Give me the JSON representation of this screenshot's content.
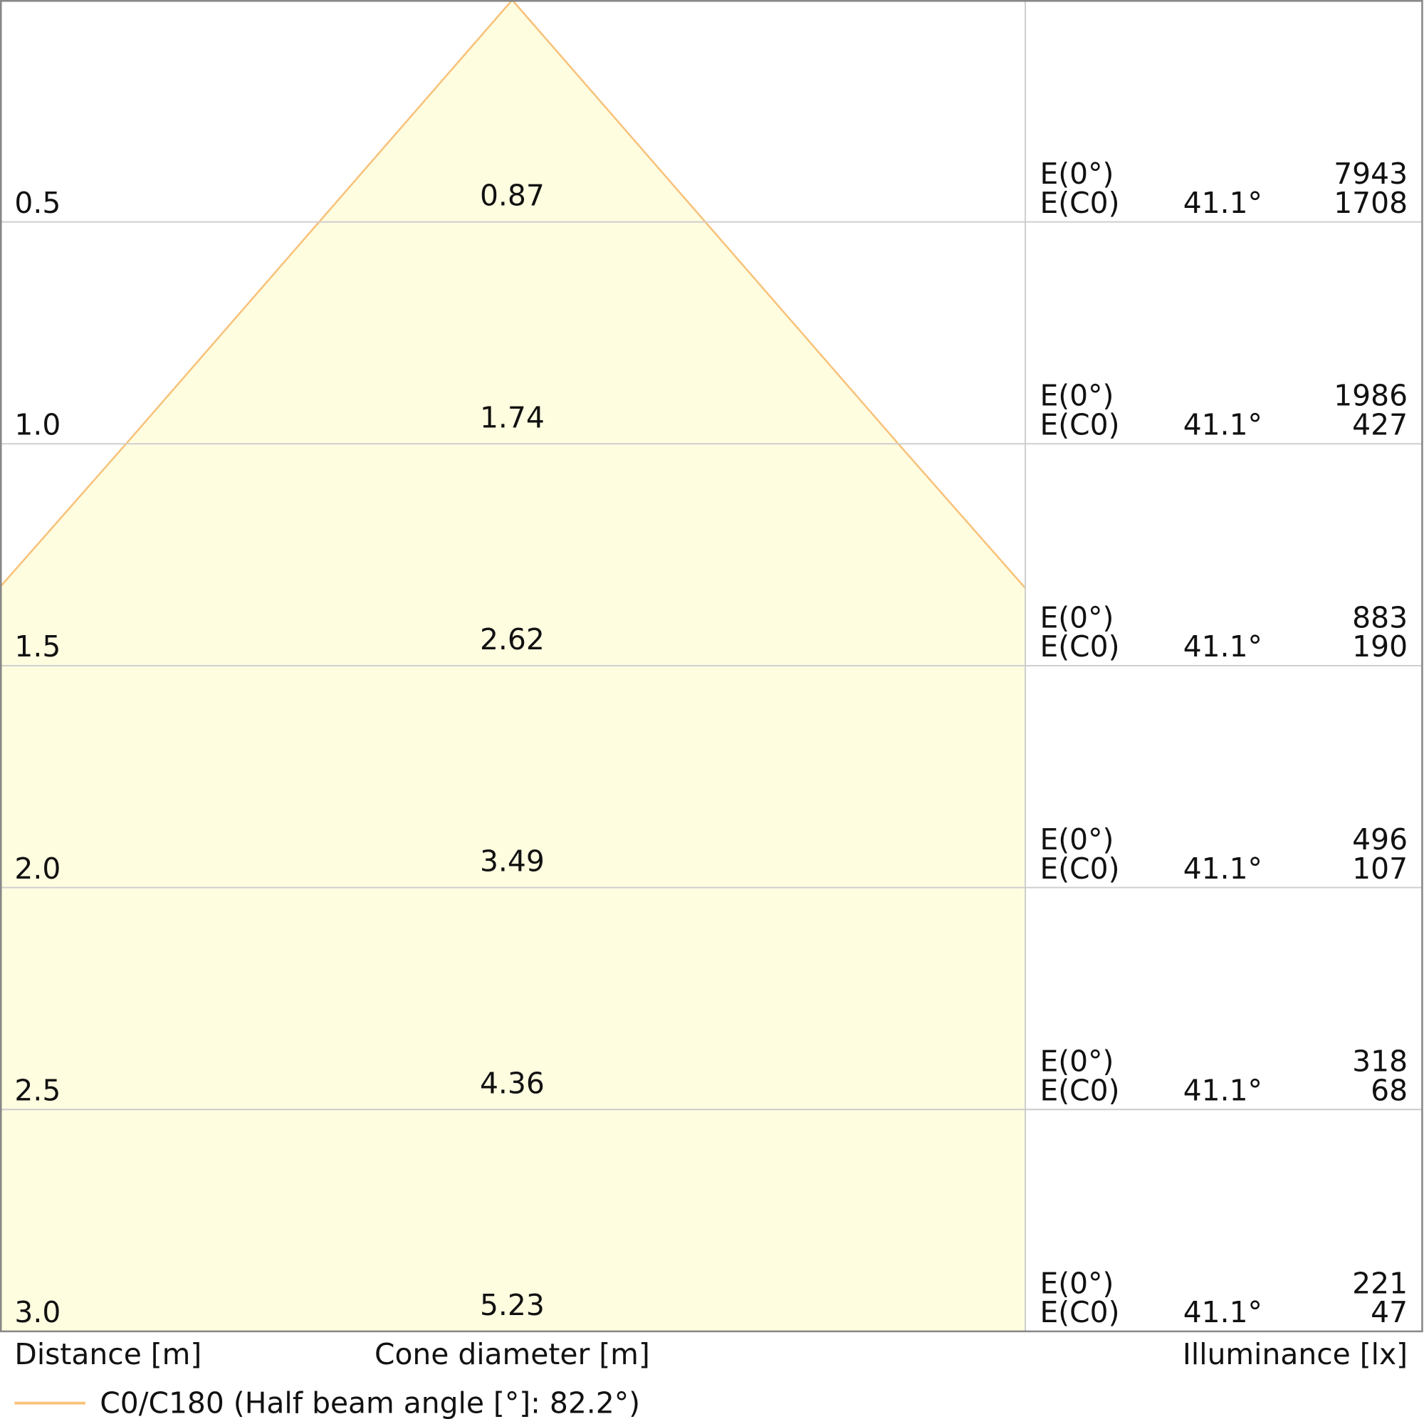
{
  "chart_data": {
    "type": "cone",
    "ylim": [
      0,
      3
    ],
    "yticks": [
      0.5,
      {
        "value": 1,
        "label": "1.0"
      },
      1.5,
      {
        "value": 2,
        "label": "2.0"
      },
      2.5,
      {
        "value": 3,
        "label": "3.0"
      }
    ],
    "diameters": [
      0.87,
      1.74,
      2.62,
      3.49,
      4.36,
      5.23
    ],
    "e0_label": "E(0°)",
    "ec0_label": "E(C0)",
    "e0": [
      7943,
      1986,
      883,
      496,
      318,
      221
    ],
    "ec0": [
      1708,
      427,
      190,
      107,
      68,
      47
    ],
    "half_angle": [
      41.1,
      41.1,
      41.1,
      41.1,
      41.1,
      41.1
    ],
    "half_angle_labels": [
      "41.1°",
      "41.1°",
      "41.1°",
      "41.1°",
      "41.1°",
      "41.1°"
    ],
    "distance_label": "Distance [m]",
    "diameter_label": "Cone diameter [m]",
    "illuminance_label": "Illuminance [lx]",
    "series": [
      {
        "name": "C0/C180 (Half beam angle [°]: 82.2°)",
        "color": "#f8c27a",
        "fill": "#fffde0"
      }
    ]
  }
}
